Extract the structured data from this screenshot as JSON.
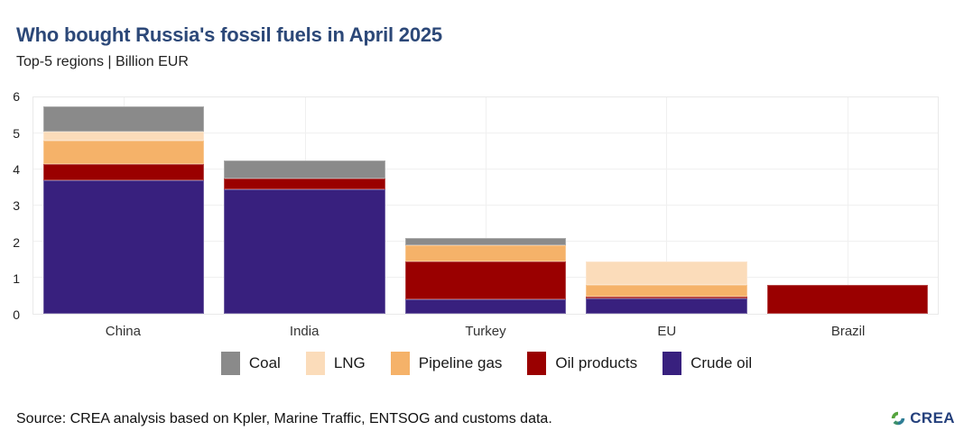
{
  "header": {
    "title": "Who bought Russia's fossil fuels in April 2025",
    "subtitle": "Top-5 regions | Billion EUR"
  },
  "chart_data": {
    "type": "bar",
    "stacked": true,
    "title": "Who bought Russia's fossil fuels in April 2025",
    "subtitle": "Top-5 regions | Billion EUR",
    "unit": "Billion EUR",
    "categories": [
      "China",
      "India",
      "Turkey",
      "EU",
      "Brazil"
    ],
    "series": [
      {
        "name": "Crude oil",
        "color": "#38207e",
        "values": [
          3.7,
          3.45,
          0.4,
          0.43,
          0
        ]
      },
      {
        "name": "Oil products",
        "color": "#9a0000",
        "values": [
          0.45,
          0.3,
          1.05,
          0.04,
          0.8
        ]
      },
      {
        "name": "Pipeline gas",
        "color": "#f5b269",
        "values": [
          0.65,
          0,
          0.47,
          0.32,
          0
        ]
      },
      {
        "name": "LNG",
        "color": "#fbdcba",
        "values": [
          0.25,
          0,
          0,
          0.65,
          0
        ]
      },
      {
        "name": "Coal",
        "color": "#8a8a8a",
        "values": [
          0.7,
          0.5,
          0.18,
          0,
          0
        ]
      }
    ],
    "totals": [
      5.75,
      4.25,
      2.1,
      1.44,
      0.8
    ],
    "legend_order": [
      "Coal",
      "LNG",
      "Pipeline gas",
      "Oil products",
      "Crude oil"
    ],
    "legend_position": "bottom",
    "ylim": [
      0,
      6
    ],
    "yticks": [
      0,
      1,
      2,
      3,
      4,
      5,
      6
    ],
    "grid": true
  },
  "footer": {
    "source": "Source: CREA analysis based on Kpler, Marine Traffic, ENTSOG and customs data.",
    "logo_text": "CREA"
  },
  "colors": {
    "title": "#2c4878",
    "logo_navy": "#24407c",
    "logo_green": "#55a43e",
    "logo_teal": "#2e7d95",
    "gridline": "#f0f0f0"
  }
}
